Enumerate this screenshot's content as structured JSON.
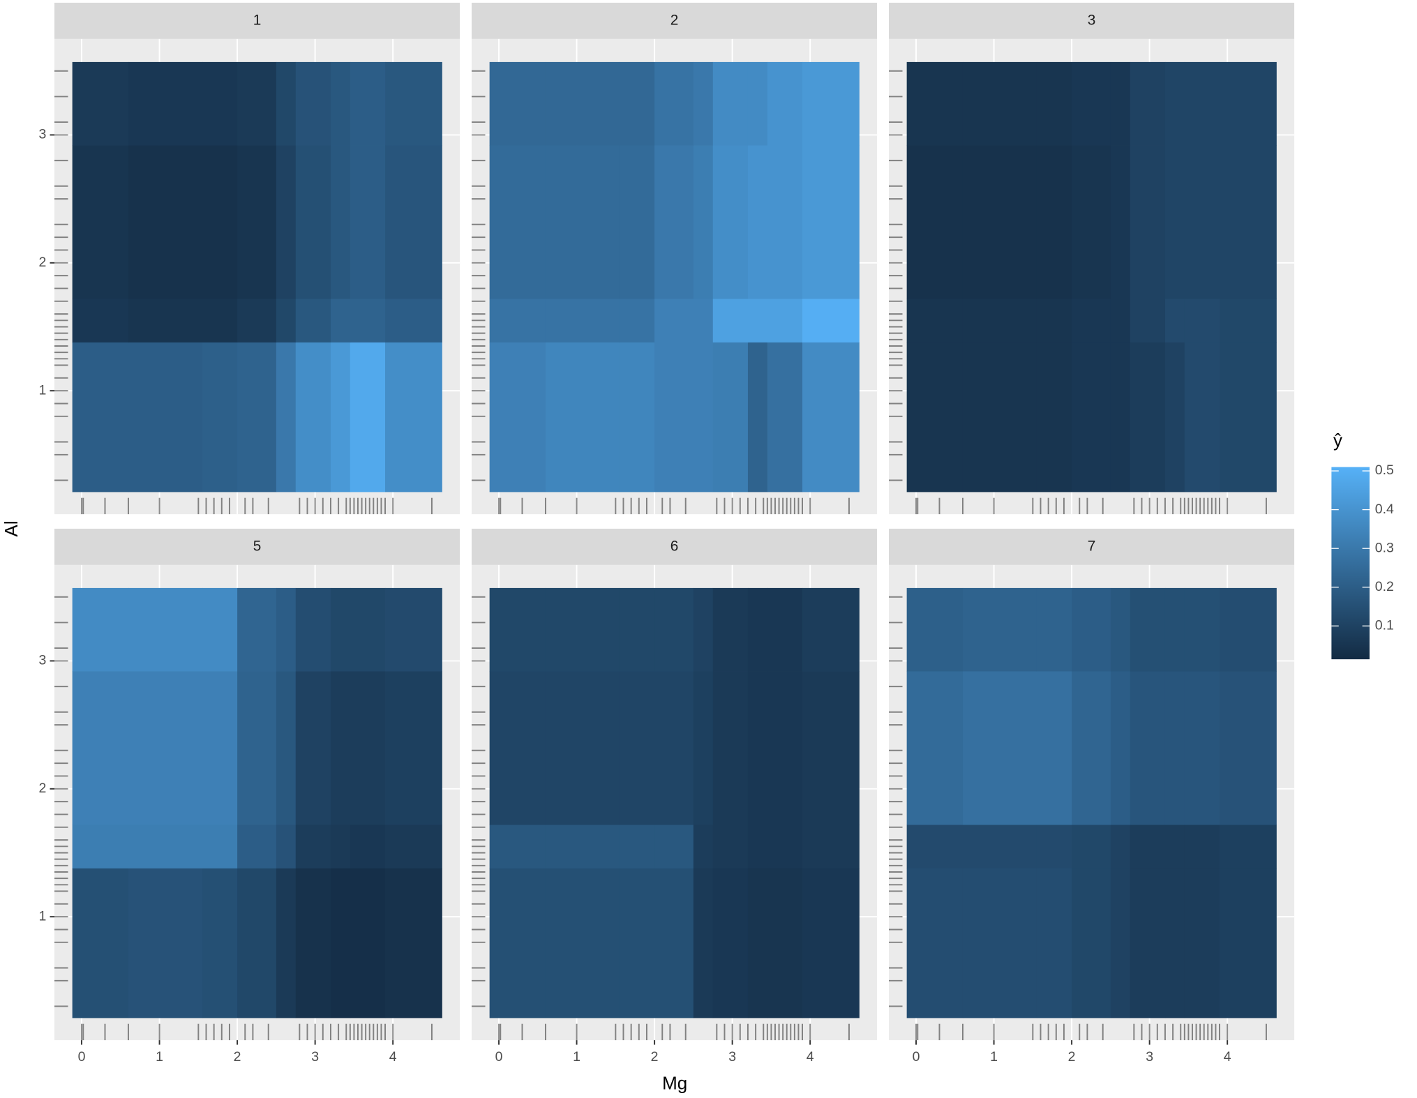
{
  "chart_data": {
    "type": "heatmap",
    "x_label": "Mg",
    "y_label": "Al",
    "legend_title": "ŷ",
    "xlim": [
      -0.35,
      4.86
    ],
    "ylim": [
      0.035,
      3.75
    ],
    "xticks": [
      0,
      1,
      2,
      3,
      4
    ],
    "yticks": [
      1,
      2,
      3
    ],
    "grid": true,
    "color_scale": {
      "low": "#132b43",
      "high": "#56b1f7",
      "limits": [
        0.014,
        0.51
      ],
      "ticks": [
        0.1,
        0.2,
        0.3,
        0.4,
        0.5
      ]
    },
    "x_edges": [
      -0.12,
      0.6,
      1.55,
      2.0,
      2.5,
      2.75,
      3.2,
      3.45,
      3.9,
      4.63
    ],
    "y_edges": [
      0.21,
      1.38,
      1.72,
      2.92,
      3.57
    ],
    "rug_x": [
      0,
      0.02,
      0.3,
      0.6,
      1.0,
      1.5,
      1.6,
      1.7,
      1.8,
      1.9,
      2.1,
      2.2,
      2.4,
      2.8,
      2.9,
      3.0,
      3.1,
      3.2,
      3.3,
      3.4,
      3.45,
      3.5,
      3.55,
      3.6,
      3.65,
      3.7,
      3.75,
      3.8,
      3.85,
      3.9,
      4.0,
      4.5
    ],
    "rug_y": [
      0.3,
      0.5,
      0.6,
      0.8,
      0.9,
      1.0,
      1.1,
      1.2,
      1.25,
      1.3,
      1.35,
      1.4,
      1.45,
      1.5,
      1.55,
      1.6,
      1.7,
      1.8,
      1.9,
      2.0,
      2.1,
      2.2,
      2.3,
      2.5,
      2.6,
      2.8,
      3.0,
      3.1,
      3.3,
      3.5
    ],
    "facets": [
      {
        "label": "1",
        "values": [
          [
            0.2,
            0.2,
            0.21,
            0.22,
            0.3,
            0.38,
            0.42,
            0.48,
            0.38
          ],
          [
            0.06,
            0.05,
            0.05,
            0.07,
            0.12,
            0.18,
            0.22,
            0.22,
            0.2
          ],
          [
            0.05,
            0.04,
            0.04,
            0.05,
            0.1,
            0.15,
            0.18,
            0.2,
            0.17
          ],
          [
            0.07,
            0.06,
            0.06,
            0.07,
            0.12,
            0.16,
            0.18,
            0.2,
            0.18
          ]
        ]
      },
      {
        "label": "2",
        "values": [
          [
            0.33,
            0.35,
            0.35,
            0.33,
            0.33,
            0.32,
            0.22,
            0.27,
            0.37
          ],
          [
            0.28,
            0.28,
            0.28,
            0.33,
            0.33,
            0.45,
            0.45,
            0.45,
            0.5
          ],
          [
            0.25,
            0.25,
            0.25,
            0.3,
            0.32,
            0.38,
            0.4,
            0.4,
            0.42
          ],
          [
            0.24,
            0.24,
            0.24,
            0.28,
            0.3,
            0.37,
            0.37,
            0.4,
            0.42
          ]
        ]
      },
      {
        "label": "3",
        "values": [
          [
            0.05,
            0.05,
            0.05,
            0.06,
            0.06,
            0.08,
            0.1,
            0.13,
            0.12
          ],
          [
            0.05,
            0.05,
            0.05,
            0.06,
            0.06,
            0.1,
            0.13,
            0.13,
            0.12
          ],
          [
            0.04,
            0.04,
            0.04,
            0.05,
            0.06,
            0.1,
            0.11,
            0.11,
            0.11
          ],
          [
            0.05,
            0.05,
            0.05,
            0.06,
            0.06,
            0.1,
            0.11,
            0.11,
            0.11
          ]
        ]
      },
      {
        "label": "5",
        "values": [
          [
            0.15,
            0.16,
            0.15,
            0.12,
            0.07,
            0.04,
            0.03,
            0.03,
            0.04
          ],
          [
            0.32,
            0.32,
            0.32,
            0.2,
            0.16,
            0.08,
            0.07,
            0.06,
            0.07
          ],
          [
            0.33,
            0.33,
            0.33,
            0.22,
            0.18,
            0.1,
            0.08,
            0.08,
            0.09
          ],
          [
            0.37,
            0.37,
            0.37,
            0.23,
            0.2,
            0.14,
            0.12,
            0.12,
            0.13
          ]
        ]
      },
      {
        "label": "6",
        "values": [
          [
            0.15,
            0.15,
            0.15,
            0.15,
            0.07,
            0.06,
            0.05,
            0.05,
            0.06
          ],
          [
            0.18,
            0.18,
            0.18,
            0.18,
            0.08,
            0.07,
            0.06,
            0.06,
            0.07
          ],
          [
            0.11,
            0.11,
            0.11,
            0.11,
            0.09,
            0.07,
            0.06,
            0.06,
            0.07
          ],
          [
            0.12,
            0.12,
            0.12,
            0.12,
            0.1,
            0.07,
            0.06,
            0.06,
            0.08
          ]
        ]
      },
      {
        "label": "7",
        "values": [
          [
            0.14,
            0.14,
            0.14,
            0.12,
            0.1,
            0.08,
            0.08,
            0.08,
            0.09
          ],
          [
            0.13,
            0.13,
            0.13,
            0.12,
            0.1,
            0.08,
            0.08,
            0.08,
            0.09
          ],
          [
            0.25,
            0.27,
            0.27,
            0.23,
            0.2,
            0.17,
            0.17,
            0.17,
            0.16
          ],
          [
            0.21,
            0.22,
            0.22,
            0.2,
            0.18,
            0.15,
            0.15,
            0.15,
            0.14
          ]
        ]
      }
    ]
  }
}
